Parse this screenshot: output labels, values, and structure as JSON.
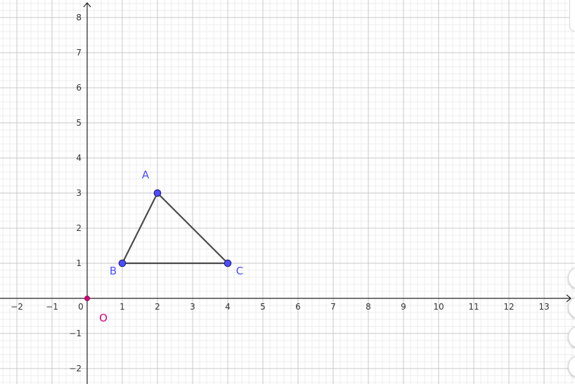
{
  "graph": {
    "x_ticks": [
      "−2",
      "−1",
      "0",
      "1",
      "2",
      "3",
      "4",
      "5",
      "6",
      "7",
      "8",
      "9",
      "10",
      "11",
      "12",
      "13"
    ],
    "y_ticks": [
      "−2",
      "−1",
      "1",
      "2",
      "3",
      "4",
      "5",
      "6",
      "7",
      "8"
    ],
    "x_tick_values": [
      -2,
      -1,
      0,
      1,
      2,
      3,
      4,
      5,
      6,
      7,
      8,
      9,
      10,
      11,
      12,
      13
    ],
    "y_tick_values": [
      -2,
      -1,
      1,
      2,
      3,
      4,
      5,
      6,
      7,
      8
    ],
    "x_range": [
      -2.45,
      13.9
    ],
    "y_range": [
      -2.4,
      8.5
    ],
    "points": [
      {
        "label": "A",
        "x": 2,
        "y": 3,
        "color": "#4d4dff"
      },
      {
        "label": "B",
        "x": 1,
        "y": 1,
        "color": "#4d4dff"
      },
      {
        "label": "C",
        "x": 4,
        "y": 1,
        "color": "#4d4dff"
      },
      {
        "label": "O",
        "x": 0,
        "y": 0,
        "color": "#d6007a"
      }
    ],
    "polygon": [
      "A",
      "B",
      "C"
    ],
    "edge_color": "#4a4a4a",
    "axis_color": "#222222",
    "grid_major_color": "#c8c8c8",
    "grid_minor_color": "#ececec"
  }
}
